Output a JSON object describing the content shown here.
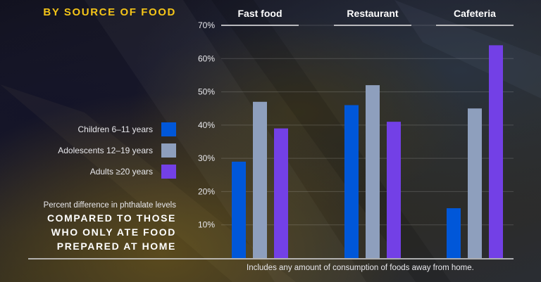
{
  "title": "BY SOURCE OF FOOD",
  "legend": [
    {
      "label": "Children 6–11 years",
      "color": "#0057d9"
    },
    {
      "label": "Adolescents 12–19 years",
      "color": "#8e9fbd"
    },
    {
      "label": "Adults ≥20 years",
      "color": "#7340e6"
    }
  ],
  "subtitle": {
    "line1": "Percent difference in phthalate levels",
    "bold_lines": [
      "COMPARED TO THOSE",
      "WHO ONLY ATE FOOD",
      "PREPARED AT HOME"
    ]
  },
  "footnote": "Includes any amount of consumption of foods away from home.",
  "chart_data": {
    "type": "bar",
    "title": "BY SOURCE OF FOOD",
    "categories": [
      "Fast food",
      "Restaurant",
      "Cafeteria"
    ],
    "series": [
      {
        "name": "Children 6–11 years",
        "color": "#0057d9",
        "values": [
          29,
          46,
          15
        ]
      },
      {
        "name": "Adolescents 12–19 years",
        "color": "#8e9fbd",
        "values": [
          47,
          52,
          45
        ]
      },
      {
        "name": "Adults ≥20 years",
        "color": "#7340e6",
        "values": [
          39,
          41,
          64
        ]
      }
    ],
    "yticks": [
      "10%",
      "20%",
      "30%",
      "40%",
      "50%",
      "60%",
      "70%"
    ],
    "ytick_values": [
      10,
      20,
      30,
      40,
      50,
      60,
      70
    ],
    "ylim": [
      0,
      70
    ],
    "xlabel": "",
    "ylabel": "Percent difference in phthalate levels",
    "grid": true,
    "legend_position": "left"
  }
}
